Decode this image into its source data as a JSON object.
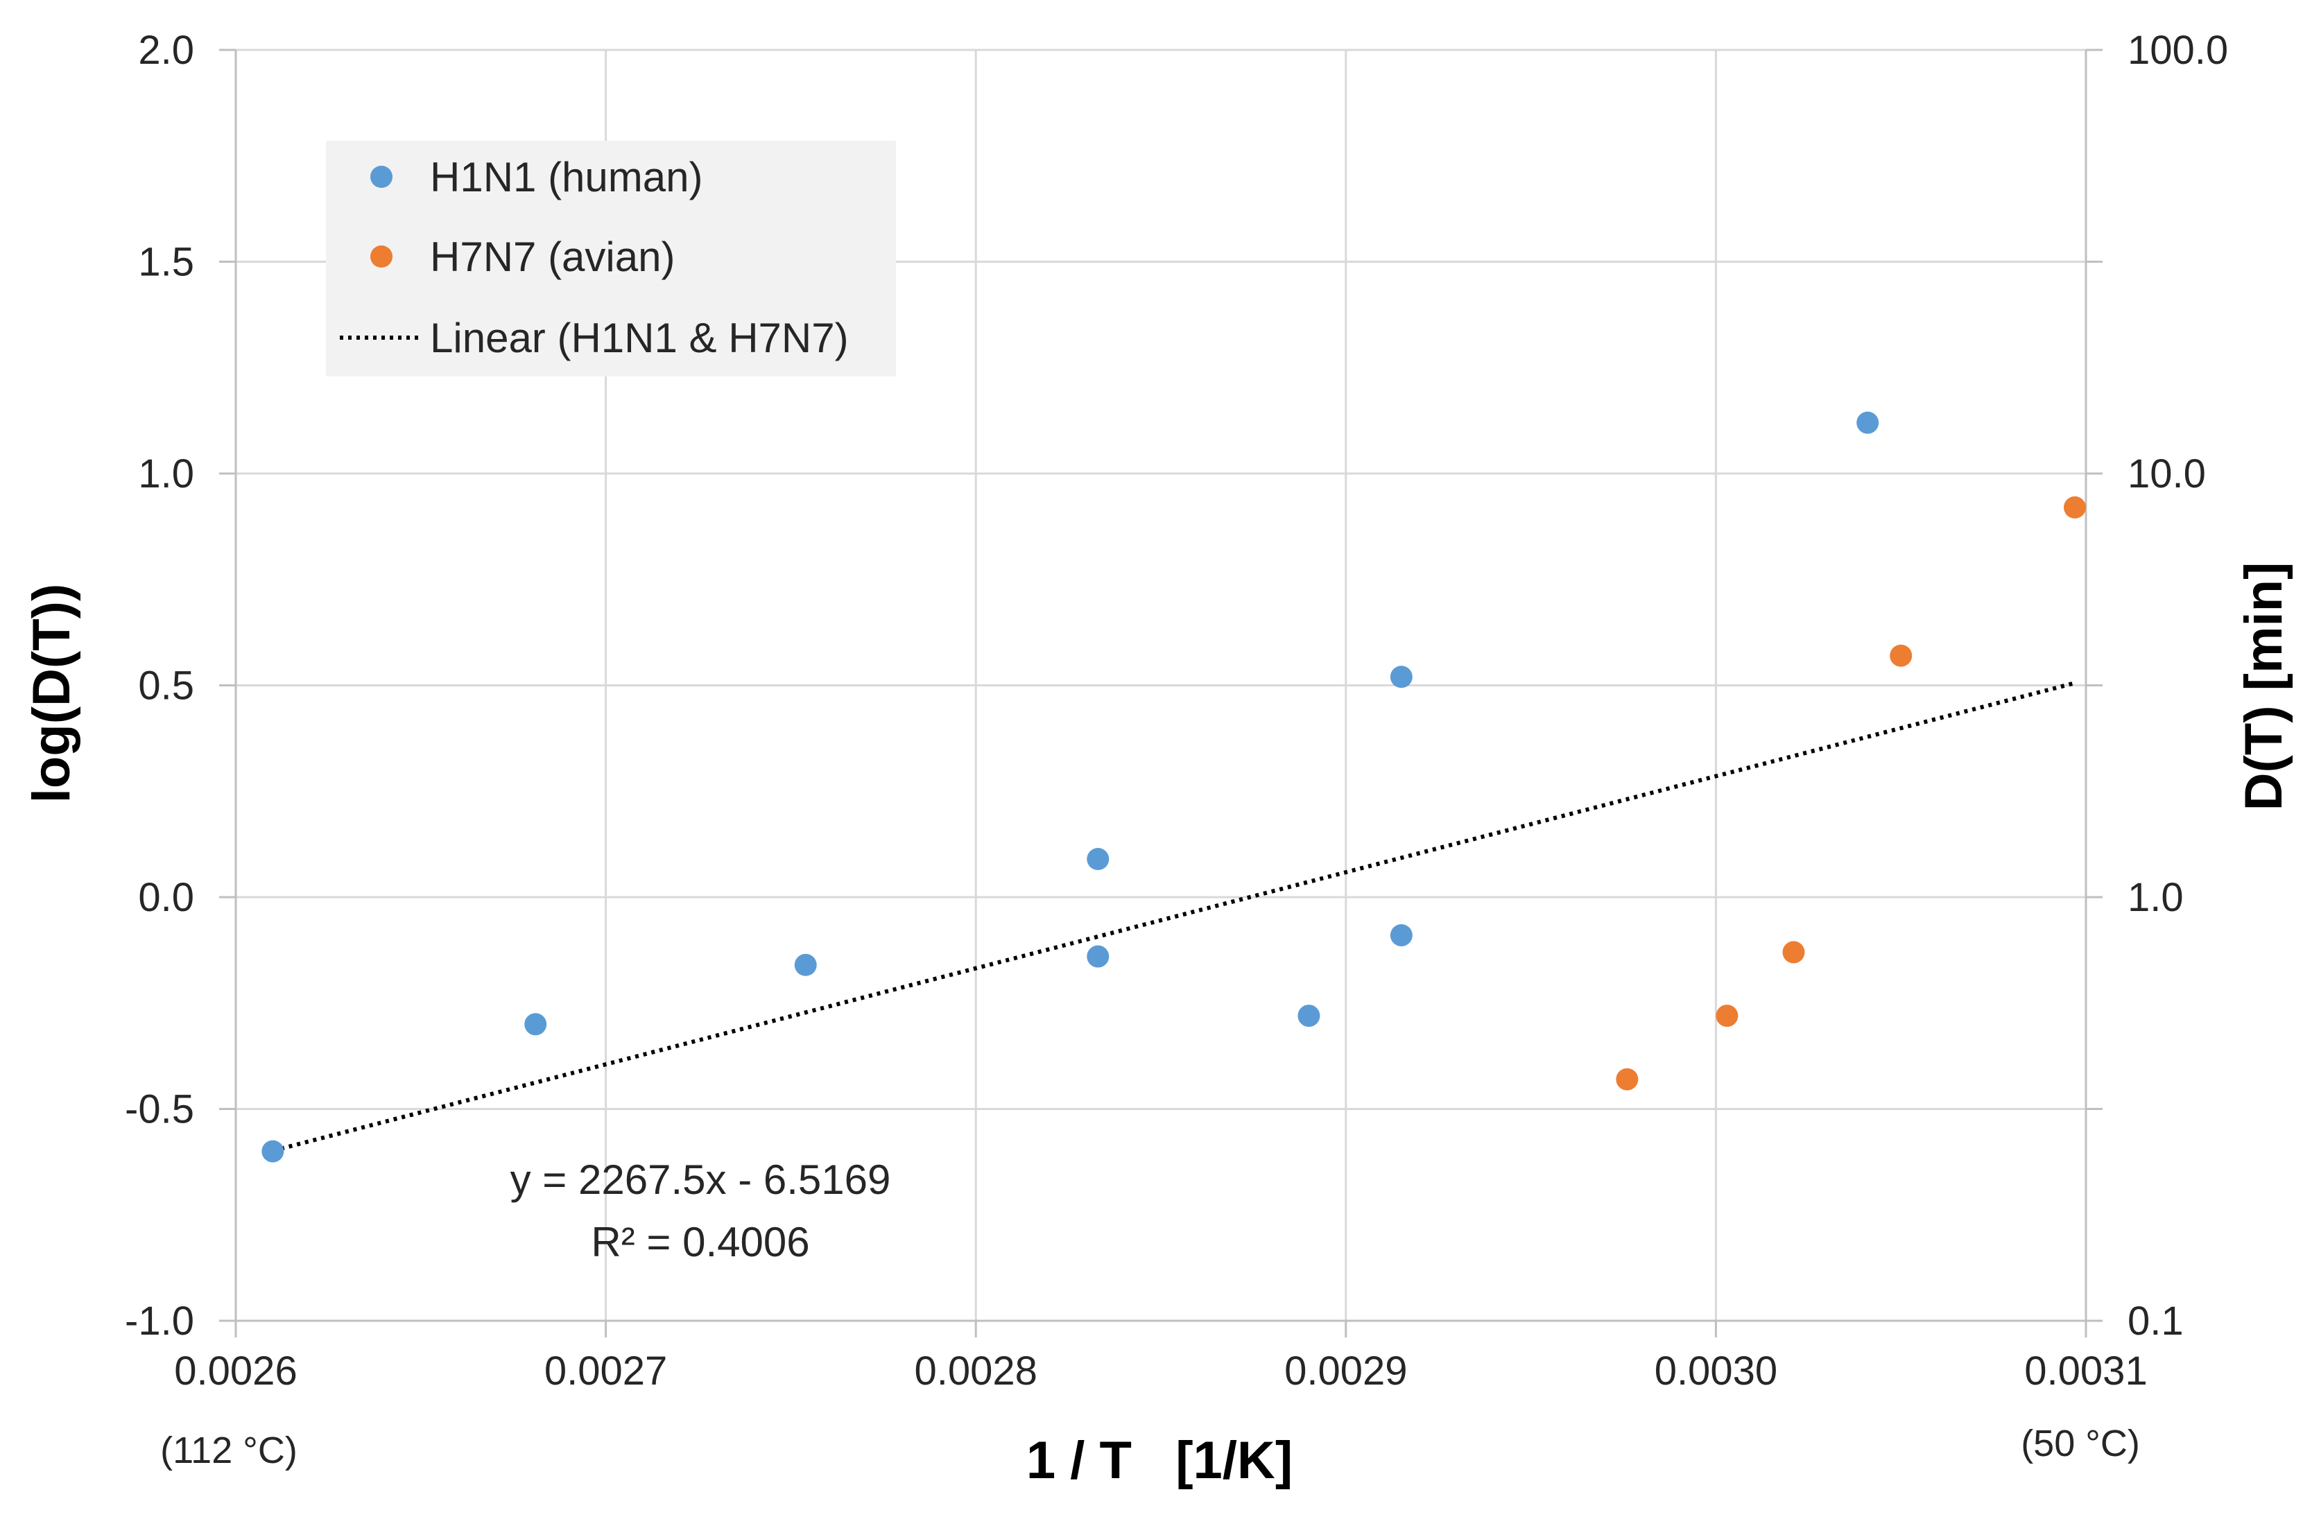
{
  "chart_data": {
    "type": "scatter",
    "title": "",
    "xlabel": "1 / T   [1/K]",
    "ylabel": "log(D(T))",
    "y2label": "D(T) [min]",
    "xlim": [
      0.0026,
      0.0031
    ],
    "ylim": [
      -1.0,
      2.0
    ],
    "x_ticks": [
      "0.0026",
      "0.0027",
      "0.0028",
      "0.0029",
      "0.0030",
      "0.0031"
    ],
    "y_ticks": [
      "2.0",
      "1.5",
      "1.0",
      "0.5",
      "0.0",
      "-0.5",
      "-1.0"
    ],
    "y2_ticks": [
      "100.0",
      "10.0",
      "1.0",
      "0.1"
    ],
    "x_notes": {
      "left": "(112 °C)",
      "right": "(50 °C)"
    },
    "grid": true,
    "legend_position": "top-left",
    "series": [
      {
        "name": "H1N1 (human)",
        "color": "#5B9BD5",
        "points": [
          [
            0.00261,
            -0.6
          ],
          [
            0.002681,
            -0.3
          ],
          [
            0.002754,
            -0.16
          ],
          [
            0.002833,
            0.09
          ],
          [
            0.002833,
            -0.14
          ],
          [
            0.00289,
            -0.28
          ],
          [
            0.002915,
            0.52
          ],
          [
            0.002915,
            -0.09
          ],
          [
            0.003041,
            1.12
          ]
        ]
      },
      {
        "name": "H7N7 (avian)",
        "color": "#ED7D31",
        "points": [
          [
            0.002976,
            -0.43
          ],
          [
            0.003003,
            -0.28
          ],
          [
            0.003021,
            -0.13
          ],
          [
            0.00305,
            0.57
          ],
          [
            0.003097,
            0.92
          ]
        ]
      }
    ],
    "trendline": {
      "name": "Linear (H1N1 & H7N7)",
      "color": "#000000",
      "slope": 2267.5,
      "intercept": -6.5169,
      "x_range": [
        0.00261,
        0.003097
      ],
      "equation": "y = 2267.5x - 6.5169",
      "r2_label": "R² = 0.4006"
    }
  }
}
